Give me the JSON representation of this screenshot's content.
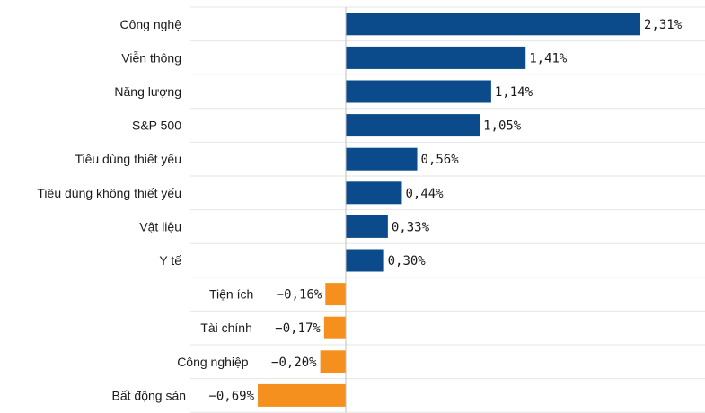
{
  "chart_data": {
    "type": "bar",
    "orientation": "horizontal",
    "categories": [
      "Công nghệ",
      "Viễn thông",
      "Năng lượng",
      "S&P 500",
      "Tiêu dùng thiết yếu",
      "Tiêu dùng không thiết yếu",
      "Vật liệu",
      "Y tế",
      "Tiện ích",
      "Tài chính",
      "Công nghiệp",
      "Bất động sản"
    ],
    "values": [
      2.31,
      1.41,
      1.14,
      1.05,
      0.56,
      0.44,
      0.33,
      0.3,
      -0.16,
      -0.17,
      -0.2,
      -0.69
    ],
    "labels": [
      "2,31%",
      "1,41%",
      "1,14%",
      "1,05%",
      "0,56%",
      "0,44%",
      "0,33%",
      "0,30%",
      "−0,16%",
      "−0,17%",
      "−0,20%",
      "−0,69%"
    ],
    "colors": {
      "positive": "#0b4a8b",
      "negative": "#f5901e",
      "grid": "#e6e6e6",
      "axis": "#bfbfbf"
    },
    "title": "",
    "xlabel": "",
    "ylabel": "",
    "grid": true,
    "legend": "none"
  }
}
